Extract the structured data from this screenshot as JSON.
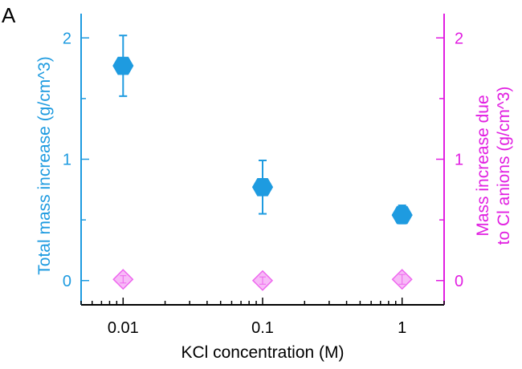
{
  "panel_label": "A",
  "colors": {
    "left_axis": "#1e9be0",
    "right_axis": "#e11ee1",
    "bottom_axis": "#000000",
    "series_total": "#1e9be0",
    "series_cl": "#ee66ee"
  },
  "chart_data": {
    "type": "scatter",
    "x_scale": "log",
    "xlim": [
      0.005,
      2
    ],
    "xticks": [
      "0.01",
      "0.1",
      "1"
    ],
    "xtick_values": [
      0.01,
      0.1,
      1
    ],
    "xlabel": "KCl concentration (M)",
    "ylim": [
      -0.2,
      2.2
    ],
    "yticks": [
      "0",
      "1",
      "2"
    ],
    "ytick_values": [
      0,
      1,
      2
    ],
    "ylabel": "Total mass increase (g/cm^3)",
    "y2lim": [
      -0.2,
      2.2
    ],
    "y2ticks": [
      "0",
      "1",
      "2"
    ],
    "y2tick_values": [
      0,
      1,
      2
    ],
    "y2label_lines": [
      "Mass increase due",
      "to Cl anions (g/cm^3)"
    ],
    "grid": false,
    "series": [
      {
        "axis": "left",
        "marker": "hexagon",
        "x": [
          0.01,
          0.1,
          1
        ],
        "y": [
          1.77,
          0.77,
          0.54
        ],
        "err_low": [
          1.52,
          0.55,
          0.47
        ],
        "err_high": [
          2.02,
          0.99,
          0.62
        ]
      },
      {
        "axis": "right",
        "marker": "diamond",
        "x": [
          0.01,
          0.1,
          1
        ],
        "y": [
          0.01,
          0.0,
          0.01
        ],
        "err_low": [
          -0.02,
          -0.03,
          -0.03
        ],
        "err_high": [
          0.04,
          0.03,
          0.05
        ]
      }
    ]
  }
}
